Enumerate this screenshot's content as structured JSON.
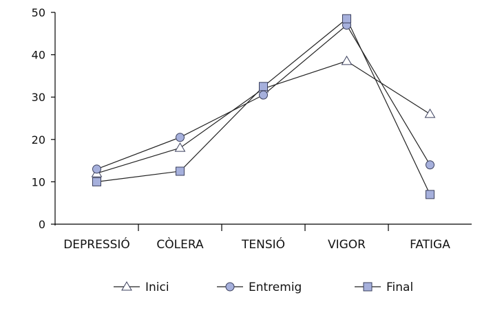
{
  "chart_data": {
    "type": "line",
    "categories": [
      "DEPRESSIÓ",
      "CÒLERA",
      "TENSIÓ",
      "VIGOR",
      "FATIGA"
    ],
    "series": [
      {
        "name": "Inici",
        "marker": "triangle",
        "values": [
          12,
          18,
          32,
          38.5,
          26
        ]
      },
      {
        "name": "Entremig",
        "marker": "circle",
        "values": [
          13,
          20.5,
          30.5,
          47,
          14
        ]
      },
      {
        "name": "Final",
        "marker": "square",
        "values": [
          10,
          12.5,
          32.5,
          48.5,
          7
        ]
      }
    ],
    "ylim": [
      0,
      50
    ],
    "yticks": [
      0,
      10,
      20,
      30,
      40,
      50
    ],
    "title": "",
    "xlabel": "",
    "ylabel": "",
    "grid": false,
    "legend_position": "bottom",
    "colors": {
      "marker_fill": "#a6b0dc",
      "marker_stroke": "#3a3f5c",
      "line": "#222222"
    }
  }
}
